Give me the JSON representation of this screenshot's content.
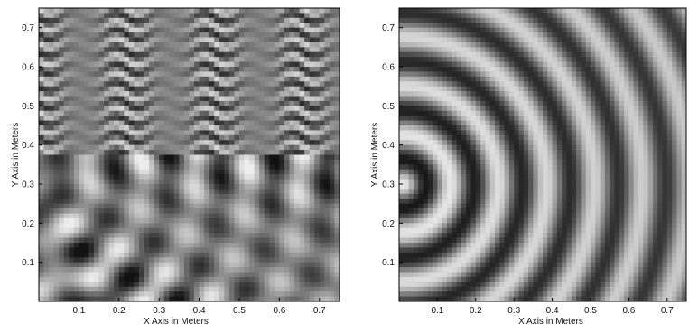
{
  "chart_data": [
    {
      "type": "heatmap",
      "title": "",
      "colormap": "grayscale",
      "xlabel": "X Axis in Meters",
      "ylabel": "Y Axis in Meters",
      "xlim": [
        0,
        0.75
      ],
      "ylim": [
        0,
        0.75
      ],
      "x_ticks": [
        0.1,
        0.2,
        0.3,
        0.4,
        0.5,
        0.6,
        0.7
      ],
      "y_ticks": [
        0.1,
        0.2,
        0.3,
        0.4,
        0.5,
        0.6,
        0.7
      ],
      "x_tick_labels": [
        "0.1",
        "0.2",
        "0.3",
        "0.4",
        "0.5",
        "0.6",
        "0.7"
      ],
      "y_tick_labels": [
        "0.1",
        "0.2",
        "0.3",
        "0.4",
        "0.5",
        "0.6",
        "0.7"
      ],
      "pattern": "interference",
      "source_point": [
        0.01,
        0.3
      ],
      "interface_y": 0.37
    },
    {
      "type": "heatmap",
      "title": "",
      "colormap": "grayscale",
      "xlabel": "X Axis in Meters",
      "ylabel": "Y Axis in Meters",
      "xlim": [
        0,
        0.75
      ],
      "ylim": [
        0,
        0.75
      ],
      "x_ticks": [
        0.1,
        0.2,
        0.3,
        0.4,
        0.5,
        0.6,
        0.7
      ],
      "y_ticks": [
        0.1,
        0.2,
        0.3,
        0.4,
        0.5,
        0.6,
        0.7
      ],
      "x_tick_labels": [
        "0.1",
        "0.2",
        "0.3",
        "0.4",
        "0.5",
        "0.6",
        "0.7"
      ],
      "y_tick_labels": [
        "0.1",
        "0.2",
        "0.3",
        "0.4",
        "0.5",
        "0.6",
        "0.7"
      ],
      "pattern": "radial",
      "source_point": [
        0.01,
        0.3
      ]
    }
  ]
}
